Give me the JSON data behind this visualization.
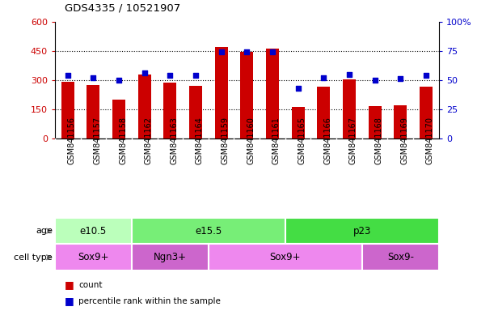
{
  "title": "GDS4335 / 10521907",
  "samples": [
    "GSM841156",
    "GSM841157",
    "GSM841158",
    "GSM841162",
    "GSM841163",
    "GSM841164",
    "GSM841159",
    "GSM841160",
    "GSM841161",
    "GSM841165",
    "GSM841166",
    "GSM841167",
    "GSM841168",
    "GSM841169",
    "GSM841170"
  ],
  "counts": [
    290,
    275,
    200,
    330,
    285,
    270,
    470,
    445,
    460,
    160,
    265,
    305,
    165,
    170,
    265
  ],
  "percentiles": [
    54,
    52,
    50,
    56,
    54,
    54,
    74,
    74,
    74,
    43,
    52,
    55,
    50,
    51,
    54
  ],
  "age_groups": [
    {
      "label": "e10.5",
      "start": 0,
      "end": 3,
      "color": "#bbffbb"
    },
    {
      "label": "e15.5",
      "start": 3,
      "end": 9,
      "color": "#77ee77"
    },
    {
      "label": "p23",
      "start": 9,
      "end": 15,
      "color": "#44dd44"
    }
  ],
  "cell_type_groups": [
    {
      "label": "Sox9+",
      "start": 0,
      "end": 3,
      "color": "#ee88ee"
    },
    {
      "label": "Ngn3+",
      "start": 3,
      "end": 6,
      "color": "#cc66cc"
    },
    {
      "label": "Sox9+",
      "start": 6,
      "end": 12,
      "color": "#ee88ee"
    },
    {
      "label": "Sox9-",
      "start": 12,
      "end": 15,
      "color": "#cc66cc"
    }
  ],
  "bar_color": "#cc0000",
  "dot_color": "#0000cc",
  "left_ylim": [
    0,
    600
  ],
  "right_ylim": [
    0,
    100
  ],
  "left_yticks": [
    0,
    150,
    300,
    450,
    600
  ],
  "right_yticks": [
    0,
    25,
    50,
    75,
    100
  ],
  "right_yticklabels": [
    "0",
    "25",
    "50",
    "75",
    "100%"
  ],
  "xlabel_bg": "#cccccc",
  "background_color": "#ffffff"
}
